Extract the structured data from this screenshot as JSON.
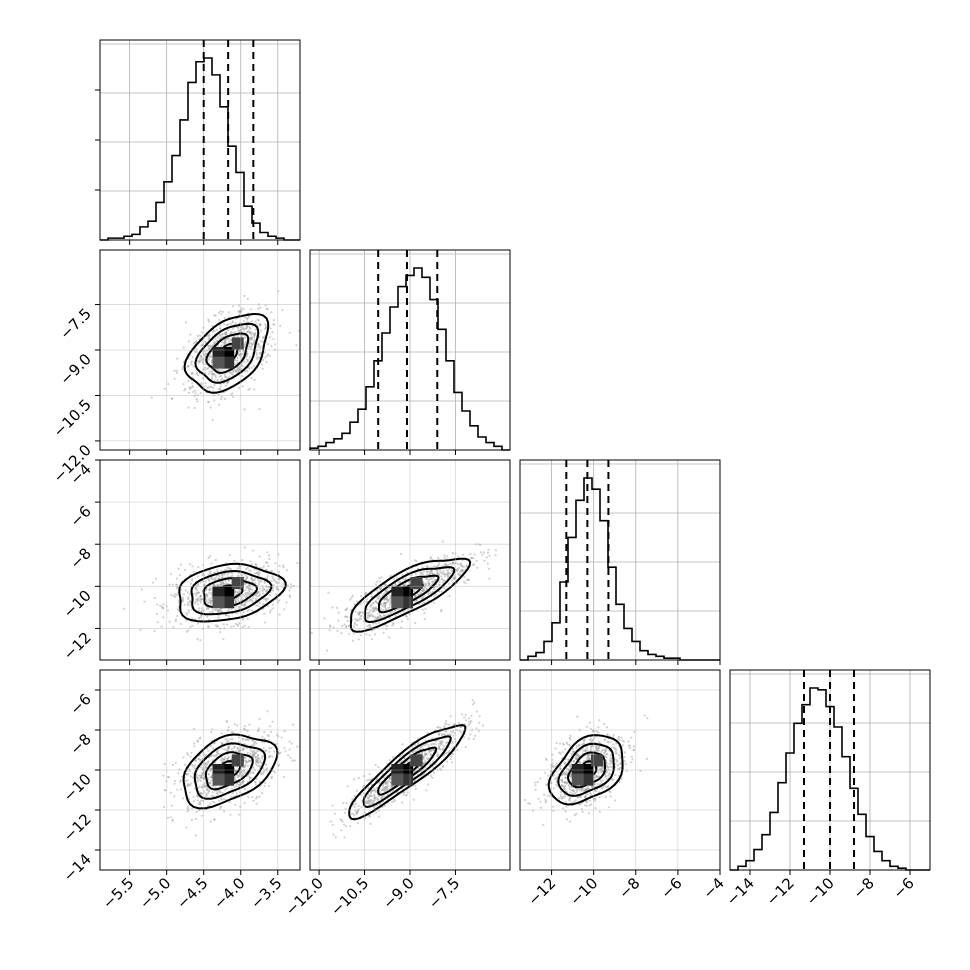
{
  "chart_data": {
    "type": "corner",
    "parameters": [
      {
        "hist_range": [
          -5.9,
          -3.2
        ],
        "axis_range": [
          -5.9,
          -3.2
        ],
        "ticks": [
          -5.5,
          -5.0,
          -4.5,
          -4.0,
          -3.5
        ],
        "tick_labels": [
          "−5.5",
          "−5.0",
          "−4.5",
          "−4.0",
          "−3.5"
        ],
        "quantiles": [
          -4.5,
          -4.17,
          -3.83
        ],
        "hist": [
          0,
          1,
          1,
          2,
          3,
          7,
          10,
          20,
          31,
          45,
          64,
          84,
          95,
          97,
          88,
          71,
          50,
          36,
          18,
          9,
          4,
          2,
          1,
          0,
          0
        ]
      },
      {
        "hist_range": [
          -12.3,
          -5.7
        ],
        "axis_range": [
          -12.3,
          -5.7
        ],
        "ticks": [
          -12.0,
          -10.5,
          -9.0,
          -7.5
        ],
        "tick_labels": [
          "−12.0",
          "−10.5",
          "−9.0",
          "−7.5"
        ],
        "quantiles": [
          -10.05,
          -9.1,
          -8.1
        ],
        "hist": [
          1,
          2,
          4,
          6,
          9,
          15,
          22,
          34,
          48,
          63,
          77,
          88,
          94,
          98,
          93,
          81,
          65,
          48,
          31,
          21,
          13,
          7,
          4,
          2,
          0
        ]
      },
      {
        "hist_range": [
          -13.5,
          -4.0
        ],
        "axis_range": [
          -13.5,
          -4.0
        ],
        "ticks": [
          -12,
          -10,
          -8,
          -6,
          -4
        ],
        "tick_labels": [
          "−12",
          "−10",
          "−8",
          "−6",
          "−4"
        ],
        "quantiles": [
          -11.3,
          -10.3,
          -9.3
        ],
        "hist": [
          0,
          2,
          4,
          10,
          20,
          42,
          66,
          86,
          98,
          92,
          75,
          50,
          30,
          17,
          10,
          5,
          3,
          2,
          1,
          1,
          0,
          0,
          0,
          0,
          0
        ]
      },
      {
        "hist_range": [
          -15.0,
          -5.0
        ],
        "axis_range": [
          -15.0,
          -5.0
        ],
        "ticks": [
          -14,
          -12,
          -10,
          -8,
          -6
        ],
        "tick_labels": [
          "−14",
          "−12",
          "−10",
          "−8",
          "−6"
        ],
        "quantiles": [
          -11.3,
          -10.0,
          -8.8
        ],
        "hist": [
          0,
          2,
          5,
          11,
          19,
          31,
          47,
          63,
          79,
          89,
          98,
          97,
          88,
          77,
          61,
          44,
          30,
          18,
          10,
          5,
          2,
          1,
          0,
          0,
          0
        ]
      }
    ],
    "pairs": [
      {
        "row": 1,
        "col": 0,
        "center": [
          -4.17,
          -9.1
        ],
        "spread": [
          0.32,
          0.68
        ],
        "angle_deg": 42
      },
      {
        "row": 2,
        "col": 0,
        "center": [
          -4.17,
          -10.3
        ],
        "spread": [
          0.36,
          0.9
        ],
        "angle_deg": 10
      },
      {
        "row": 2,
        "col": 1,
        "center": [
          -9.1,
          -10.3
        ],
        "spread": [
          1.1,
          0.65
        ],
        "angle_deg": 28
      },
      {
        "row": 3,
        "col": 0,
        "center": [
          -4.17,
          -10.0
        ],
        "spread": [
          0.34,
          1.05
        ],
        "angle_deg": 28
      },
      {
        "row": 3,
        "col": 1,
        "center": [
          -9.1,
          -10.0
        ],
        "spread": [
          1.2,
          0.55
        ],
        "angle_deg": 38
      },
      {
        "row": 3,
        "col": 2,
        "center": [
          -10.3,
          -10.0
        ],
        "spread": [
          1.0,
          0.95
        ],
        "angle_deg": 40
      }
    ],
    "contour_levels": [
      0.5,
      1.0,
      1.5,
      2.0
    ],
    "grid": true
  }
}
